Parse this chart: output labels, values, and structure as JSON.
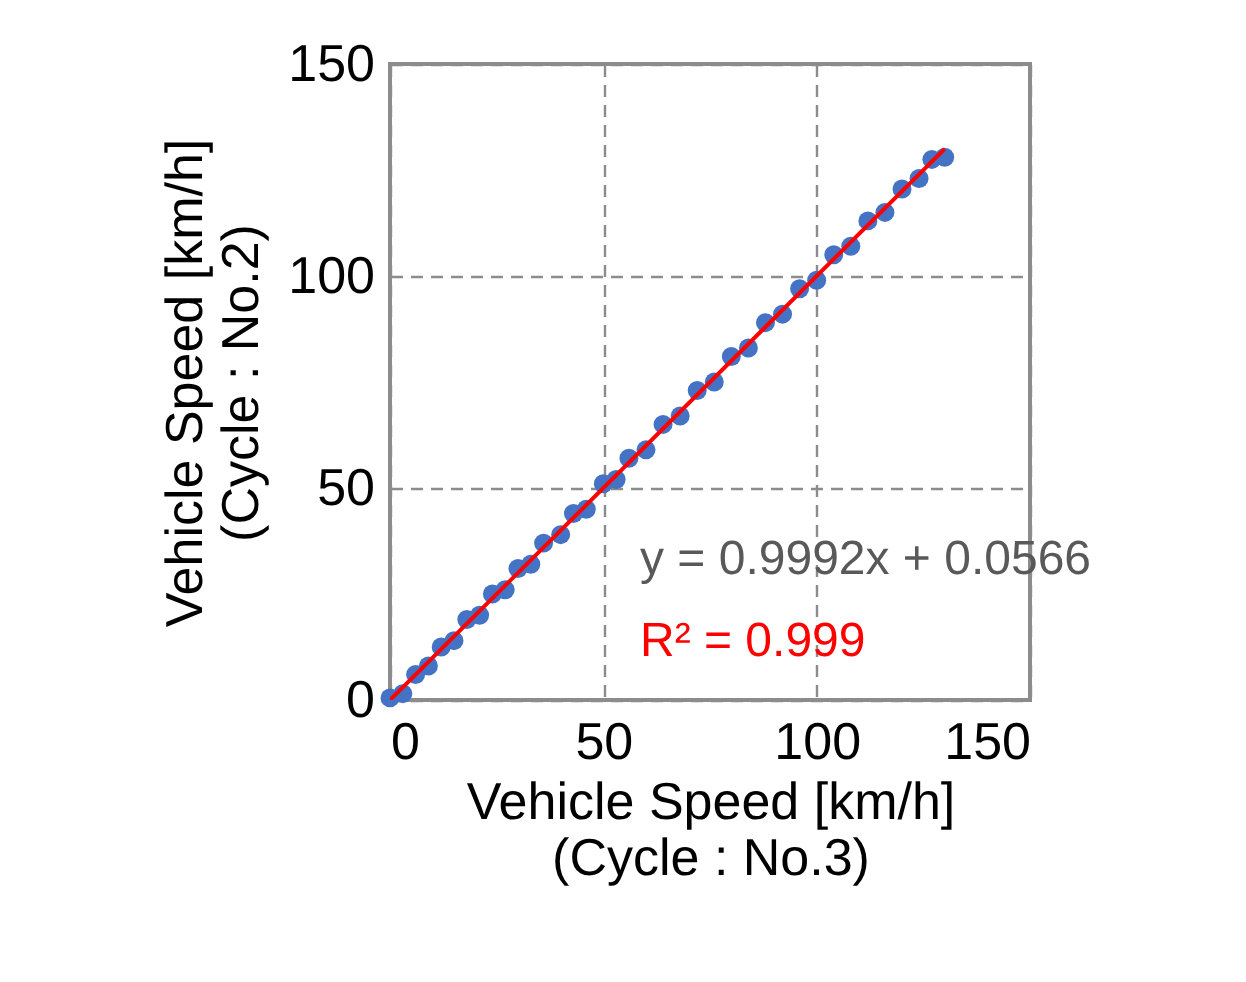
{
  "chart_data": {
    "type": "scatter",
    "xlabel": "Vehicle Speed [km/h]\n(Cycle : No.3)",
    "ylabel": "Vehicle Speed [km/h]\n(Cycle : No.2)",
    "xlim": [
      0,
      150
    ],
    "ylim": [
      0,
      150
    ],
    "xticks": [
      0,
      50,
      100,
      150
    ],
    "yticks": [
      0,
      50,
      100,
      150
    ],
    "grid": true,
    "marker": "circle",
    "annotations": [
      "y = 0.9992x + 0.0566",
      "R² = 0.999"
    ],
    "series": [
      {
        "color": "#4472c4",
        "x": [
          0,
          3,
          6,
          9,
          12,
          15,
          18,
          21,
          24,
          27,
          30,
          33,
          36,
          40,
          43,
          46,
          50,
          53,
          56,
          60,
          64,
          68,
          72,
          76,
          80,
          84,
          88,
          92,
          96,
          100,
          104,
          108,
          112,
          116,
          120,
          124,
          127,
          130
        ],
        "values": [
          0.5,
          1.5,
          6,
          8,
          12.5,
          14,
          19,
          20,
          25,
          26,
          31,
          32,
          37,
          39,
          44,
          45,
          51,
          52,
          57,
          59,
          65,
          67,
          73,
          75,
          81,
          83,
          89,
          91,
          97,
          99,
          105,
          107,
          113,
          115,
          120.5,
          123,
          127.5,
          128
        ]
      },
      {
        "type": "line",
        "color": "#ff0000",
        "marker": "none",
        "x": [
          0,
          130
        ],
        "values": [
          0,
          130
        ]
      }
    ]
  }
}
